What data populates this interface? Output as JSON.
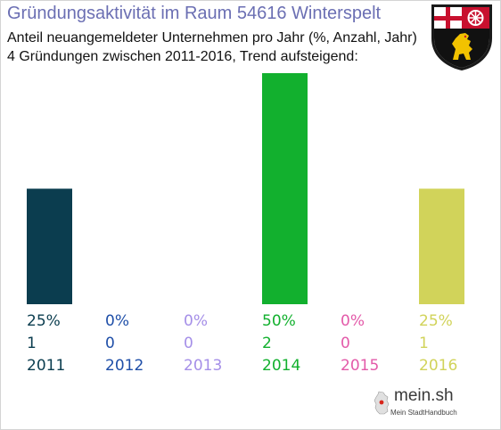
{
  "title": "Gründungsaktivität im Raum 54616 Winterspelt",
  "subtitle_line1": "Anteil neuangemeldeter Unternehmen pro Jahr (%, Anzahl, Jahr)",
  "subtitle_line2": "4 Gründungen zwischen 2011-2016, Trend aufsteigend:",
  "crest_icon": "rheinland-pfalz-coat-of-arms-icon",
  "logo": {
    "name": "mein.sh",
    "tagline": "Mein StadtHandbuch",
    "icon": "germany-map-icon"
  },
  "chart_data": {
    "type": "bar",
    "categories": [
      "2011",
      "2012",
      "2013",
      "2014",
      "2015",
      "2016"
    ],
    "values": [
      25,
      0,
      0,
      50,
      0,
      25
    ],
    "value_labels": [
      "25%",
      "0%",
      "0%",
      "50%",
      "0%",
      "25%"
    ],
    "counts": [
      "1",
      "0",
      "0",
      "2",
      "0",
      "1"
    ],
    "colors": [
      "#0b3d4f",
      "#1f4fa8",
      "#a58fe8",
      "#12b02e",
      "#e35aa9",
      "#d1d35a"
    ],
    "ylim": [
      0,
      50
    ],
    "grid": false,
    "legend": "none"
  }
}
